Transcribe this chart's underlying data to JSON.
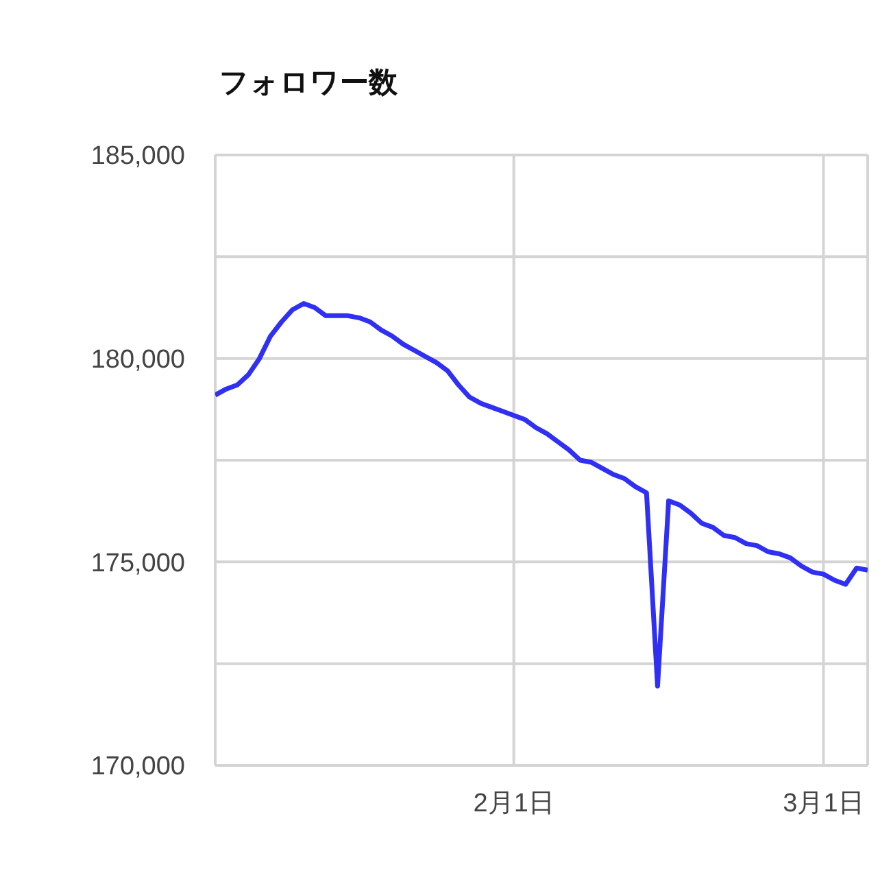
{
  "chart_data": {
    "type": "line",
    "title": "フォロワー数",
    "x": [
      "--01-05",
      "--01-06",
      "--01-07",
      "--01-08",
      "--01-09",
      "--01-10",
      "--01-11",
      "--01-12",
      "--01-13",
      "--01-14",
      "--01-15",
      "--01-16",
      "--01-17",
      "--01-18",
      "--01-19",
      "--01-20",
      "--01-21",
      "--01-22",
      "--01-23",
      "--01-24",
      "--01-25",
      "--01-26",
      "--01-27",
      "--01-28",
      "--01-29",
      "--01-30",
      "--01-31",
      "--02-01",
      "--02-02",
      "--02-03",
      "--02-04",
      "--02-05",
      "--02-06",
      "--02-07",
      "--02-08",
      "--02-09",
      "--02-10",
      "--02-11",
      "--02-12",
      "--02-13",
      "--02-14",
      "--02-15",
      "--02-16",
      "--02-17",
      "--02-18",
      "--02-19",
      "--02-20",
      "--02-21",
      "--02-22",
      "--02-23",
      "--02-24",
      "--02-25",
      "--02-26",
      "--02-27",
      "--02-28",
      "--03-01",
      "--03-02",
      "--03-03",
      "--03-04",
      "--03-05"
    ],
    "series": [
      {
        "color": "#3030f5",
        "values": [
          179100,
          179250,
          179350,
          179600,
          180000,
          180550,
          180900,
          181200,
          181350,
          181250,
          181050,
          181050,
          181050,
          181000,
          180900,
          180700,
          180550,
          180350,
          180200,
          180050,
          179900,
          179700,
          179350,
          179050,
          178900,
          178800,
          178700,
          178600,
          178500,
          178300,
          178150,
          177950,
          177750,
          177500,
          177450,
          177300,
          177150,
          177050,
          176850,
          176700,
          171950,
          176500,
          176400,
          176200,
          175950,
          175850,
          175650,
          175600,
          175450,
          175400,
          175250,
          175200,
          175100,
          174900,
          174750,
          174700,
          174550,
          174450,
          174850,
          174800
        ]
      }
    ],
    "xlim": [
      "--01-05",
      "--03-05"
    ],
    "xticks": [
      {
        "value": "--02-01",
        "label": "2月1日"
      },
      {
        "value": "--03-01",
        "label": "3月1日"
      }
    ],
    "ylim": [
      170000,
      185000
    ],
    "yticks": [
      {
        "value": 170000,
        "label": "170,000"
      },
      {
        "value": 172500,
        "label": null
      },
      {
        "value": 175000,
        "label": "175,000"
      },
      {
        "value": 177500,
        "label": null
      },
      {
        "value": 180000,
        "label": "180,000"
      },
      {
        "value": 182500,
        "label": null
      },
      {
        "value": 185000,
        "label": "185,000"
      }
    ],
    "grid": true,
    "legend": false,
    "marker": "none",
    "line_style": "solid"
  }
}
